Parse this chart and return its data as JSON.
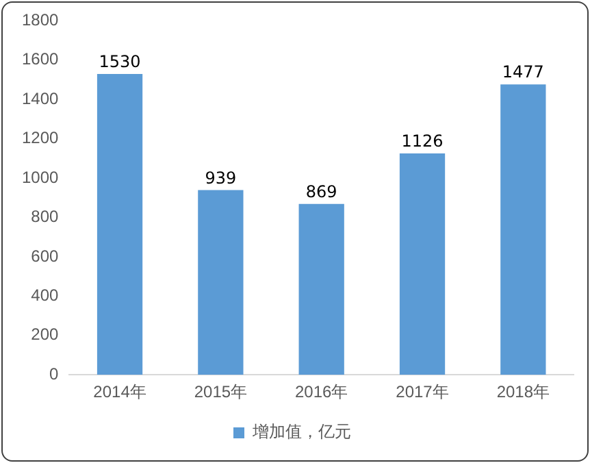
{
  "chart_data": {
    "type": "bar",
    "categories": [
      "2014年",
      "2015年",
      "2016年",
      "2017年",
      "2018年"
    ],
    "series": [
      {
        "name": "增加值，亿元",
        "color": "#5b9bd5",
        "values": [
          1530,
          939,
          869,
          1126,
          1477
        ]
      }
    ],
    "ylim": [
      0,
      1800
    ],
    "yticks": [
      0,
      200,
      400,
      600,
      800,
      1000,
      1200,
      1400,
      1600,
      1800
    ],
    "grid": false,
    "legend": "bottom",
    "data_labels": true
  }
}
